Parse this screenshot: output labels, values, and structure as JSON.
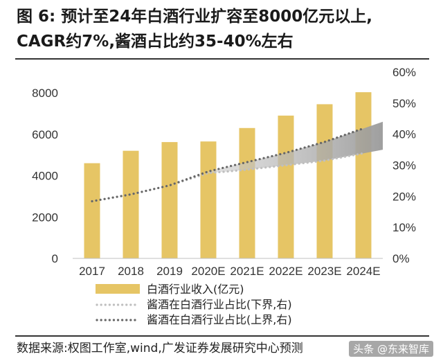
{
  "title": {
    "line1": "图  6:  预计至24年白酒行业扩容至8000亿元以上,",
    "line2": "CAGR约7%,酱酒占比约35-40%左右"
  },
  "source": "数据来源:权图工作室,wind,广发证券发展研究中心预测",
  "watermark": "头条 @东来智库",
  "chart_data": {
    "type": "bar",
    "categories": [
      "2017",
      "2018",
      "2019",
      "2020E",
      "2021E",
      "2022E",
      "2023E",
      "2024E"
    ],
    "ylim_left": [
      0,
      8000
    ],
    "yticks_left": [
      0,
      2000,
      4000,
      6000,
      8000
    ],
    "ylim_right": [
      0,
      0.6
    ],
    "yticks_right": [
      "0%",
      "10%",
      "20%",
      "30%",
      "40%",
      "50%",
      "60%"
    ],
    "grid": false,
    "legend_position": "bottom",
    "series": [
      {
        "name": "白酒行业收入(亿元)",
        "type": "bar",
        "axis": "left",
        "color": "#E6C565",
        "values": [
          4600,
          5200,
          5620,
          5650,
          6300,
          6900,
          7450,
          8030
        ]
      },
      {
        "name": "酱酒在白酒行业占比(下界,右)",
        "type": "line",
        "axis": "right",
        "style": "dotted",
        "color": "#BFBFBF",
        "x": [
          0,
          1,
          2,
          3,
          3.5,
          4,
          5,
          6,
          7.5
        ],
        "values": [
          0.184,
          0.206,
          0.235,
          0.275,
          0.28,
          0.286,
          0.3,
          0.315,
          0.35
        ]
      },
      {
        "name": "酱酒在白酒行业占比(上界,右)",
        "type": "line",
        "axis": "right",
        "style": "dotted",
        "color": "#666666",
        "x": [
          0,
          1,
          2,
          3,
          3.5,
          4,
          5,
          6,
          7.5
        ],
        "values": [
          0.184,
          0.206,
          0.235,
          0.28,
          0.295,
          0.31,
          0.34,
          0.375,
          0.44
        ]
      }
    ],
    "band_color": "#A9A9A9"
  }
}
